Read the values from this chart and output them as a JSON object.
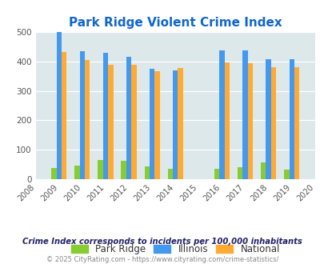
{
  "title": "Park Ridge Violent Crime Index",
  "all_years": [
    2008,
    2009,
    2010,
    2011,
    2012,
    2013,
    2014,
    2015,
    2016,
    2017,
    2018,
    2019,
    2020
  ],
  "data_years": [
    2009,
    2010,
    2011,
    2012,
    2013,
    2014,
    2016,
    2017,
    2018,
    2019
  ],
  "park_ridge": [
    38,
    46,
    65,
    62,
    44,
    36,
    36,
    43,
    58,
    33
  ],
  "illinois": [
    498,
    434,
    428,
    415,
    374,
    370,
    438,
    438,
    406,
    408
  ],
  "national": [
    431,
    405,
    387,
    387,
    366,
    376,
    397,
    394,
    380,
    379
  ],
  "park_ridge_color": "#88cc33",
  "illinois_color": "#4499ee",
  "national_color": "#ffaa33",
  "bg_color": "#dde8ea",
  "title_color": "#1166cc",
  "xlim": [
    2008,
    2020
  ],
  "ylim": [
    0,
    500
  ],
  "yticks": [
    0,
    100,
    200,
    300,
    400,
    500
  ],
  "footnote": "Crime Index corresponds to incidents per 100,000 inhabitants",
  "copyright": "© 2025 CityRating.com - https://www.cityrating.com/crime-statistics/",
  "bar_width": 0.22,
  "legend_text_color": "#333333",
  "footnote_color": "#222266",
  "copyright_color": "#888888"
}
